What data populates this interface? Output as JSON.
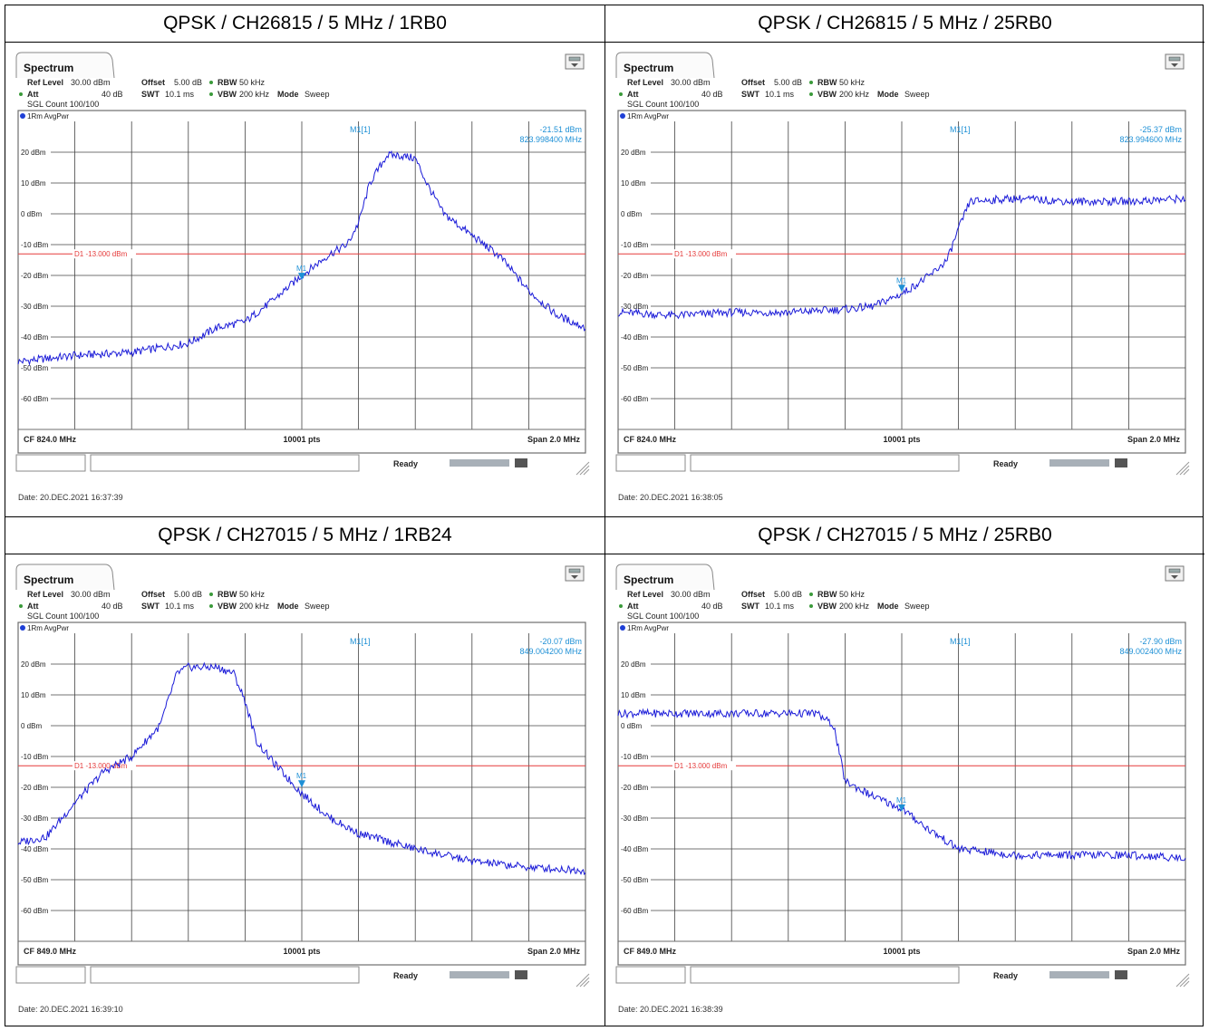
{
  "panels": [
    {
      "title": "QPSK / CH26815 / 5 MHz / 1RB0",
      "tab": "Spectrum",
      "ref_level": "30.00 dBm",
      "offset": "5.00 dB",
      "rbw": "50 kHz",
      "att": "40 dB",
      "swt": "10.1 ms",
      "vbw": "200 kHz",
      "mode": "Sweep",
      "sgl_count": "SGL Count 100/100",
      "trace": "1Rm AvgPwr",
      "marker_label": "M1[1]",
      "marker_value": "-21.51 dBm",
      "marker_freq": "823.998400 MHz",
      "marker_tag": "M1",
      "display_line": "D1 -13.000 dBm",
      "cf": "CF 824.0 MHz",
      "pts": "10001 pts",
      "span": "Span 2.0 MHz",
      "status": "Ready",
      "date": "Date: 20.DEC.2021  16:37:39",
      "chart_data": {
        "type": "line",
        "xlabel": "",
        "ylabel": "",
        "ylim": [
          -70,
          30
        ],
        "y_ticks": [
          "20 dBm",
          "10 dBm",
          "0 dBm",
          "-10 dBm",
          "-20 dBm",
          "-30 dBm",
          "-40 dBm",
          "-50 dBm",
          "-60 dBm"
        ],
        "x": [
          0,
          0.05,
          0.1,
          0.2,
          0.3,
          0.35,
          0.4,
          0.45,
          0.5,
          0.55,
          0.58,
          0.6,
          0.62,
          0.65,
          0.67,
          0.7,
          0.72,
          0.75,
          0.8,
          0.85,
          0.9,
          0.95,
          1.0
        ],
        "values": [
          -48,
          -47,
          -46,
          -45,
          -42,
          -37,
          -35,
          -28,
          -20,
          -13,
          -10,
          -3,
          10,
          19,
          19,
          18,
          10,
          0,
          -7,
          -14,
          -25,
          -33,
          -37
        ],
        "x_unit": "fraction of 2.0 MHz span",
        "limit_line": -13,
        "marker": {
          "x": 0.5,
          "y": -21.51
        }
      }
    },
    {
      "title": "QPSK / CH26815 / 5 MHz / 25RB0",
      "tab": "Spectrum",
      "ref_level": "30.00 dBm",
      "offset": "5.00 dB",
      "rbw": "50 kHz",
      "att": "40 dB",
      "swt": "10.1 ms",
      "vbw": "200 kHz",
      "mode": "Sweep",
      "sgl_count": "SGL Count 100/100",
      "trace": "1Rm AvgPwr",
      "marker_label": "M1[1]",
      "marker_value": "-25.37 dBm",
      "marker_freq": "823.994600 MHz",
      "marker_tag": "M1",
      "display_line": "D1 -13.000 dBm",
      "cf": "CF 824.0 MHz",
      "pts": "10001 pts",
      "span": "Span 2.0 MHz",
      "status": "Ready",
      "date": "Date: 20.DEC.2021  16:38:05",
      "chart_data": {
        "type": "line",
        "xlabel": "",
        "ylabel": "",
        "ylim": [
          -70,
          30
        ],
        "y_ticks": [
          "20 dBm",
          "10 dBm",
          "0 dBm",
          "-10 dBm",
          "-20 dBm",
          "-30 dBm",
          "-40 dBm",
          "-50 dBm",
          "-60 dBm"
        ],
        "x": [
          0,
          0.1,
          0.2,
          0.3,
          0.4,
          0.45,
          0.5,
          0.55,
          0.58,
          0.6,
          0.62,
          0.7,
          0.8,
          0.9,
          1.0
        ],
        "values": [
          -32,
          -33,
          -32,
          -32,
          -31,
          -30,
          -26,
          -20,
          -15,
          -5,
          4,
          5,
          4,
          4,
          5
        ],
        "x_unit": "fraction of 2.0 MHz span",
        "limit_line": -13,
        "marker": {
          "x": 0.5,
          "y": -25.37
        }
      }
    },
    {
      "title": "QPSK / CH27015 / 5 MHz / 1RB24",
      "tab": "Spectrum",
      "ref_level": "30.00 dBm",
      "offset": "5.00 dB",
      "rbw": "50 kHz",
      "att": "40 dB",
      "swt": "10.1 ms",
      "vbw": "200 kHz",
      "mode": "Sweep",
      "sgl_count": "SGL Count 100/100",
      "trace": "1Rm AvgPwr",
      "marker_label": "M1[1]",
      "marker_value": "-20.07 dBm",
      "marker_freq": "849.004200 MHz",
      "marker_tag": "M1",
      "display_line": "D1 -13.000 dBm",
      "cf": "CF 849.0 MHz",
      "pts": "10001 pts",
      "span": "Span 2.0 MHz",
      "status": "Ready",
      "date": "Date: 20.DEC.2021  16:39:10",
      "chart_data": {
        "type": "line",
        "xlabel": "",
        "ylabel": "",
        "ylim": [
          -70,
          30
        ],
        "y_ticks": [
          "20 dBm",
          "10 dBm",
          "0 dBm",
          "-10 dBm",
          "-20 dBm",
          "-30 dBm",
          "-40 dBm",
          "-50 dBm",
          "-60 dBm"
        ],
        "x": [
          0,
          0.05,
          0.1,
          0.15,
          0.2,
          0.25,
          0.28,
          0.3,
          0.35,
          0.38,
          0.4,
          0.42,
          0.45,
          0.5,
          0.55,
          0.6,
          0.7,
          0.8,
          0.9,
          1.0
        ],
        "values": [
          -38,
          -36,
          -25,
          -15,
          -10,
          0,
          17,
          19,
          19,
          17,
          8,
          -5,
          -12,
          -22,
          -30,
          -35,
          -40,
          -44,
          -46,
          -47
        ],
        "x_unit": "fraction of 2.0 MHz span",
        "limit_line": -13,
        "marker": {
          "x": 0.5,
          "y": -20.07
        }
      }
    },
    {
      "title": "QPSK / CH27015 / 5 MHz / 25RB0",
      "tab": "Spectrum",
      "ref_level": "30.00 dBm",
      "offset": "5.00 dB",
      "rbw": "50 kHz",
      "att": "40 dB",
      "swt": "10.1 ms",
      "vbw": "200 kHz",
      "mode": "Sweep",
      "sgl_count": "SGL Count 100/100",
      "trace": "1Rm AvgPwr",
      "marker_label": "M1[1]",
      "marker_value": "-27.90 dBm",
      "marker_freq": "849.002400 MHz",
      "marker_tag": "M1",
      "display_line": "D1 -13.000 dBm",
      "cf": "CF 849.0 MHz",
      "pts": "10001 pts",
      "span": "Span 2.0 MHz",
      "status": "Ready",
      "date": "Date: 20.DEC.2021  16:38:39",
      "chart_data": {
        "type": "line",
        "xlabel": "",
        "ylabel": "",
        "ylim": [
          -70,
          30
        ],
        "y_ticks": [
          "20 dBm",
          "10 dBm",
          "0 dBm",
          "-10 dBm",
          "-20 dBm",
          "-30 dBm",
          "-40 dBm",
          "-50 dBm",
          "-60 dBm"
        ],
        "x": [
          0,
          0.1,
          0.2,
          0.3,
          0.35,
          0.38,
          0.4,
          0.45,
          0.5,
          0.55,
          0.6,
          0.7,
          0.8,
          0.9,
          1.0
        ],
        "values": [
          4,
          4,
          4,
          4,
          4,
          0,
          -18,
          -23,
          -27,
          -34,
          -40,
          -42,
          -42,
          -42,
          -43
        ],
        "x_unit": "fraction of 2.0 MHz span",
        "limit_line": -13,
        "marker": {
          "x": 0.5,
          "y": -27.9
        }
      }
    }
  ]
}
